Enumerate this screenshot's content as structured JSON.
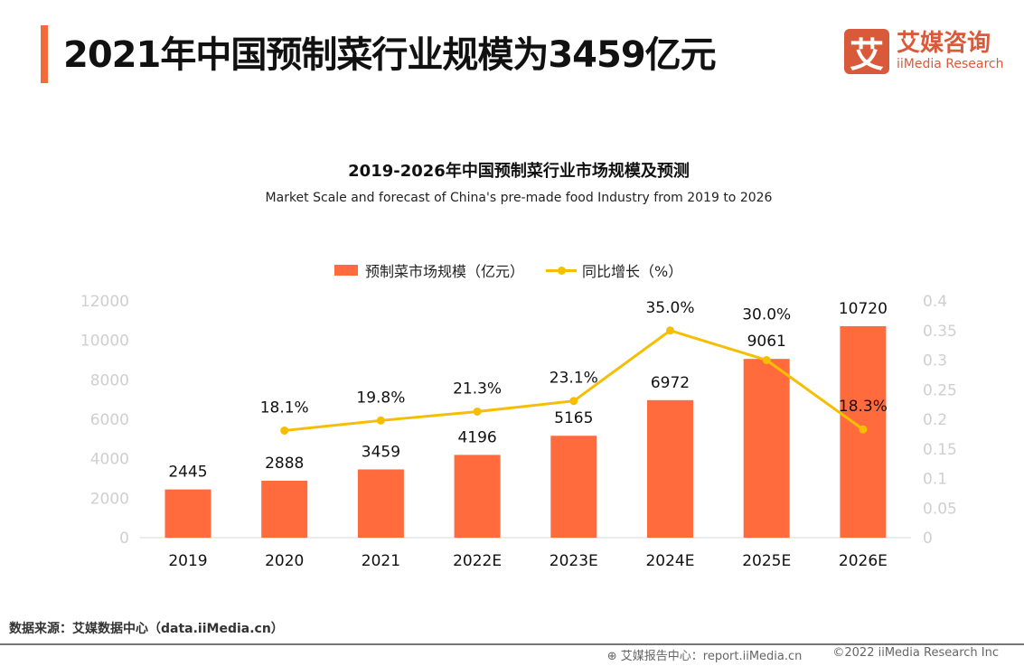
{
  "header": {
    "title": "2021年中国预制菜行业规模为3459亿元"
  },
  "logo": {
    "mark": "艾",
    "cn": "艾媒咨询",
    "en": "iiMedia Research"
  },
  "colors": {
    "accent": "#F26B3A",
    "bar": "#FF6B3D",
    "line": "#F5BE00",
    "logo": "#D95A3A"
  },
  "chart_data": {
    "type": "bar+line",
    "title": "2019-2026年中国预制菜行业市场规模及预测",
    "subtitle": "Market Scale and forecast of China's pre-made food Industry from 2019 to 2026",
    "legend_position": "top",
    "grid": false,
    "categories": [
      "2019",
      "2020",
      "2021",
      "2022E",
      "2023E",
      "2024E",
      "2025E",
      "2026E"
    ],
    "series": [
      {
        "name": "预制菜市场规模（亿元）",
        "type": "bar",
        "axis": "left",
        "values": [
          2445,
          2888,
          3459,
          4196,
          5165,
          6972,
          9061,
          10720
        ],
        "labels": [
          "2445",
          "2888",
          "3459",
          "4196",
          "5165",
          "6972",
          "9061",
          "10720"
        ]
      },
      {
        "name": "同比增长（%）",
        "type": "line",
        "axis": "right",
        "values": [
          null,
          0.181,
          0.198,
          0.213,
          0.231,
          0.35,
          0.3,
          0.183
        ],
        "labels": [
          "",
          "18.1%",
          "19.8%",
          "21.3%",
          "23.1%",
          "35.0%",
          "30.0%",
          "18.3%"
        ]
      }
    ],
    "ylim_left": [
      0,
      12000
    ],
    "yticks_left": [
      "0",
      "2000",
      "4000",
      "6000",
      "8000",
      "10000",
      "12000"
    ],
    "ylim_right": [
      0,
      0.4
    ],
    "yticks_right": [
      "0",
      "0.05",
      "0.1",
      "0.15",
      "0.2",
      "0.25",
      "0.3",
      "0.35",
      "0.4"
    ]
  },
  "footer": {
    "source": "数据来源：艾媒数据中心（data.iiMedia.cn）",
    "report": "艾媒报告中心：report.iiMedia.cn",
    "copyright": "©2022  iiMedia Research  Inc"
  }
}
